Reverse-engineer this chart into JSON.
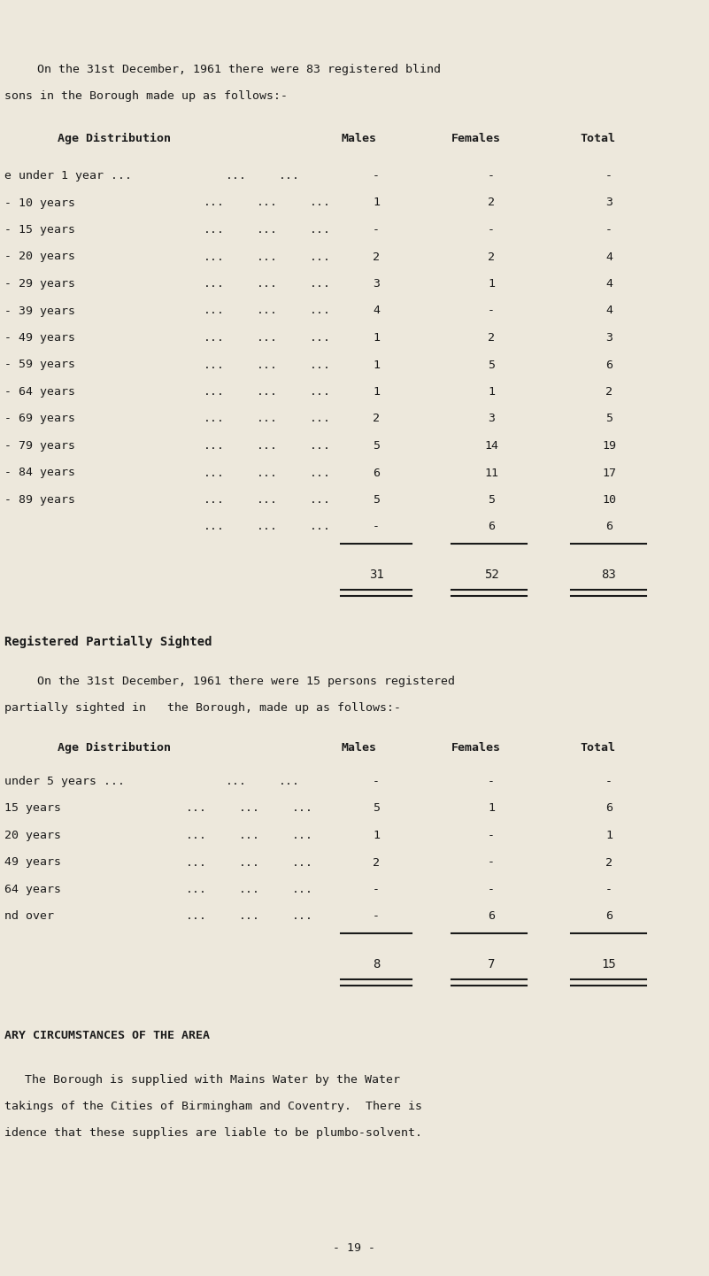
{
  "bg_color": "#ede8dc",
  "text_color": "#1a1a1a",
  "page_width": 8.01,
  "page_height": 14.41,
  "intro_line1": "On the 31st December, 1961 there were 83 registered blind",
  "intro_line2": "sons in the Borough made up as follows:-",
  "table1_header": "Age Distribution",
  "table1_col_headers": [
    "Males",
    "Females",
    "Total"
  ],
  "table1_rows": [
    [
      "e under 1 year ...",
      "...",
      "...",
      "-",
      "-",
      "-"
    ],
    [
      "- 10 years",
      "...",
      "...",
      "1",
      "2",
      "3"
    ],
    [
      "- 15 years",
      "...",
      "...",
      "-",
      "-",
      "-"
    ],
    [
      "- 20 years",
      "...",
      "...",
      "2",
      "2",
      "4"
    ],
    [
      "- 29 years",
      "...",
      "...",
      "3",
      "1",
      "4"
    ],
    [
      "- 39 years",
      "...",
      "...",
      "4",
      "-",
      "4"
    ],
    [
      "- 49 years",
      "...",
      "...",
      "1",
      "2",
      "3"
    ],
    [
      "- 59 years",
      "...",
      "...",
      "1",
      "5",
      "6"
    ],
    [
      "- 64 years",
      "...",
      "...",
      "1",
      "1",
      "2"
    ],
    [
      "- 69 years",
      "...",
      "...",
      "2",
      "3",
      "5"
    ],
    [
      "- 79 years",
      "...",
      "...",
      "5",
      "14",
      "19"
    ],
    [
      "- 84 years",
      "...",
      "...",
      "6",
      "11",
      "17"
    ],
    [
      "- 89 years",
      "...",
      "...",
      "5",
      "5",
      "10"
    ],
    [
      "",
      "...",
      "...",
      "-",
      "6",
      "6"
    ]
  ],
  "table1_totals": [
    "31",
    "52",
    "83"
  ],
  "section2_title": "Registered Partially Sighted",
  "section2_line1": "On the 31st December, 1961 there were 15 persons registered",
  "section2_line2": "partially sighted in   the Borough, made up as follows:-",
  "table2_header": "Age Distribution",
  "table2_col_headers": [
    "Males",
    "Females",
    "Total"
  ],
  "table2_rows": [
    [
      "under 5 years ...",
      "...",
      "...",
      "-",
      "-",
      "-"
    ],
    [
      "15 years",
      "...",
      "...",
      "5",
      "1",
      "6"
    ],
    [
      "20 years",
      "...",
      "...",
      "1",
      "-",
      "1"
    ],
    [
      "49 years",
      "...",
      "...",
      "2",
      "-",
      "2"
    ],
    [
      "64 years",
      "...",
      "...",
      "-",
      "-",
      "-"
    ],
    [
      "nd over",
      "...",
      "...",
      "-",
      "6",
      "6"
    ]
  ],
  "table2_totals": [
    "8",
    "7",
    "15"
  ],
  "section3_title": "ARY CIRCUMSTANCES OF THE AREA",
  "section3_line1": "The Borough is supplied with Mains Water by the Water",
  "section3_line2": "takings of the Cities of Birmingham and Coventry.  There is",
  "section3_line3": "idence that these supplies are liable to be plumbo-solvent.",
  "page_number": "- 19 -"
}
